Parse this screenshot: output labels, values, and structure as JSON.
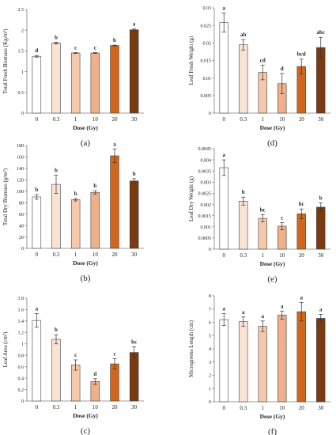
{
  "colors": {
    "0": "#ffffff",
    "0.3": "#fbe3d4",
    "1": "#f6c9ad",
    "10": "#f0b08a",
    "20": "#d1661c",
    "30": "#7a3a12",
    "axis": "#7f7f7f",
    "bar_edge": "#444444",
    "error_bar": "#333333"
  },
  "chart_data": [
    {
      "type": "bar",
      "panel_label": "(a)",
      "ylabel": "Total Fresh Biomass (Kg/m²)",
      "xlabel": "Dose (Gy)",
      "categories": [
        "0",
        "0.3",
        "1",
        "10",
        "20",
        "30"
      ],
      "values": [
        1.37,
        1.69,
        1.45,
        1.45,
        1.63,
        2.01
      ],
      "errors": [
        0.02,
        0.02,
        0.01,
        0.01,
        0.01,
        0.02
      ],
      "letters": [
        "d",
        "b",
        "c",
        "c",
        "b",
        "a"
      ],
      "ylim": [
        0,
        2.5
      ],
      "yticks": [
        0,
        0.5,
        1,
        1.5,
        2,
        2.5
      ],
      "ytick_labels": [
        "0",
        "0.5",
        "1",
        "1.5",
        "2",
        "2.5"
      ],
      "grid": false
    },
    {
      "type": "bar",
      "panel_label": "(d)",
      "ylabel": "Leaf Fresh Weight (g)",
      "xlabel": "Dose (Gy)",
      "categories": [
        "0",
        "0.3",
        "1",
        "10",
        "20",
        "30"
      ],
      "values": [
        0.0258,
        0.0195,
        0.0116,
        0.0084,
        0.0133,
        0.0187
      ],
      "errors": [
        0.0027,
        0.0015,
        0.0021,
        0.0029,
        0.0021,
        0.0029
      ],
      "letters": [
        "a",
        "ab",
        "cd",
        "d",
        "bcd",
        "abc"
      ],
      "ylim": [
        0,
        0.03
      ],
      "yticks": [
        0,
        0.005,
        0.01,
        0.015,
        0.02,
        0.025,
        0.03
      ],
      "ytick_labels": [
        "0",
        "0.005",
        "0.01",
        "0.015",
        "0.02",
        "0.025",
        "0.03"
      ],
      "grid": false
    },
    {
      "type": "bar",
      "panel_label": "(b)",
      "ylabel": "Total Dry Biomass (g/m²)",
      "xlabel": "Dose (Gy)",
      "categories": [
        "0",
        "0.3",
        "1",
        "10",
        "20",
        "30"
      ],
      "values": [
        90,
        112,
        85,
        98,
        162,
        118
      ],
      "errors": [
        4,
        16,
        2,
        3,
        12,
        4
      ],
      "letters": [
        "b",
        "b",
        "b",
        "b",
        "a",
        "b"
      ],
      "ylim": [
        0,
        180
      ],
      "yticks": [
        0,
        20,
        40,
        60,
        80,
        100,
        120,
        140,
        160,
        180
      ],
      "ytick_labels": [
        "0",
        "20",
        "40",
        "60",
        "80",
        "100",
        "120",
        "140",
        "160",
        "180"
      ],
      "grid": false
    },
    {
      "type": "bar",
      "panel_label": "(e)",
      "ylabel": "Leaf Dry Weight (g)",
      "xlabel": "Dose (Gy)",
      "categories": [
        "0",
        "0.3",
        "1",
        "10",
        "20",
        "30"
      ],
      "values": [
        0.00365,
        0.00215,
        0.00138,
        0.00103,
        0.00158,
        0.00188
      ],
      "errors": [
        0.00035,
        0.00018,
        0.00016,
        0.00016,
        0.00022,
        0.00019
      ],
      "letters": [
        "a",
        "b",
        "bc",
        "c",
        "bc",
        "b"
      ],
      "ylim": [
        0,
        0.0045
      ],
      "yticks": [
        0,
        0.0005,
        0.001,
        0.0015,
        0.002,
        0.0025,
        0.003,
        0.0035,
        0.004,
        0.0045
      ],
      "ytick_labels": [
        "0",
        "0.0005",
        "0.001",
        "0.0015",
        "0.002",
        "0.0025",
        "0.003",
        "0.0035",
        "0.004",
        "0.0045"
      ],
      "grid": false
    },
    {
      "type": "bar",
      "panel_label": "(c)",
      "ylabel": "Leaf Area (cm²)",
      "xlabel": "Dose (Gy)",
      "categories": [
        "0",
        "0.3",
        "1",
        "10",
        "20",
        "30"
      ],
      "values": [
        1.41,
        1.08,
        0.63,
        0.34,
        0.65,
        0.85
      ],
      "errors": [
        0.12,
        0.08,
        0.09,
        0.05,
        0.09,
        0.1
      ],
      "letters": [
        "a",
        "b",
        "c",
        "d",
        "c",
        "bc"
      ],
      "ylim": [
        0,
        1.8
      ],
      "yticks": [
        0,
        0.2,
        0.4,
        0.6,
        0.8,
        1,
        1.2,
        1.4,
        1.6,
        1.8
      ],
      "ytick_labels": [
        "0",
        "0.2",
        "0.4",
        "0.6",
        "0.8",
        "1",
        "1.2",
        "1.4",
        "1.6",
        "1.8"
      ],
      "grid": false
    },
    {
      "type": "bar",
      "panel_label": "(f)",
      "ylabel": "Microgreens Length (cm)",
      "xlabel": "Dose (Gy)",
      "categories": [
        "0",
        "0.3",
        "1",
        "10",
        "20",
        "30"
      ],
      "values": [
        6.2,
        6.05,
        5.7,
        6.55,
        6.8,
        6.3
      ],
      "errors": [
        0.45,
        0.35,
        0.4,
        0.3,
        0.7,
        0.3
      ],
      "letters": [
        "a",
        "a",
        "a",
        "a",
        "a",
        "a"
      ],
      "ylim": [
        0,
        8
      ],
      "yticks": [
        0,
        1,
        2,
        3,
        4,
        5,
        6,
        7,
        8
      ],
      "ytick_labels": [
        "0",
        "1",
        "2",
        "3",
        "4",
        "5",
        "6",
        "7",
        "8"
      ],
      "grid": false
    }
  ]
}
